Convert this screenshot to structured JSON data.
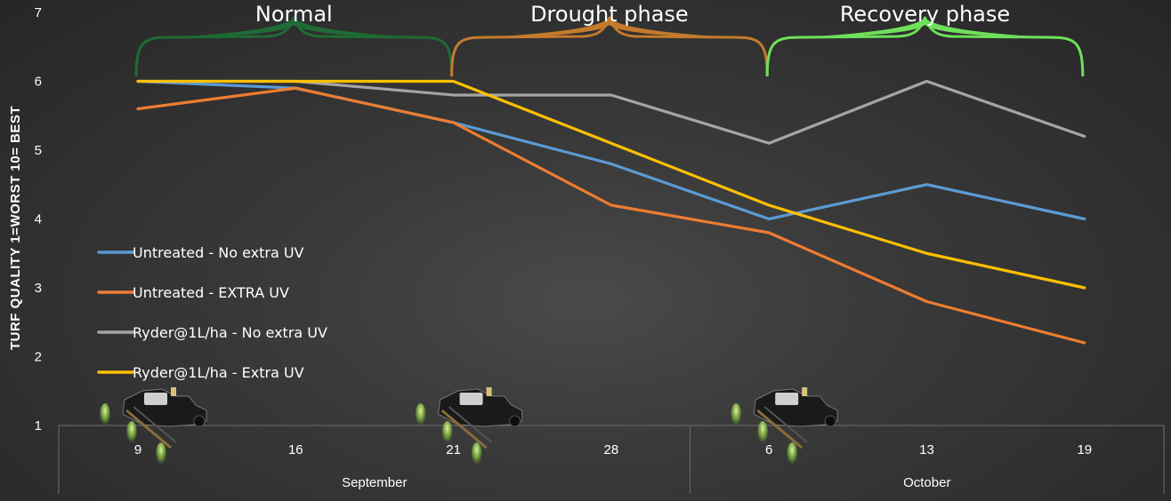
{
  "chart_data": {
    "type": "line",
    "ylabel": "TURF QUALITY 1=WORST 10= BEST",
    "ylim": [
      1,
      7
    ],
    "yticks": [
      1,
      2,
      3,
      4,
      5,
      6,
      7
    ],
    "categories": [
      "9",
      "16",
      "21",
      "28",
      "6",
      "13",
      "19"
    ],
    "months": [
      {
        "label": "September",
        "from": 0,
        "to": 3
      },
      {
        "label": "October",
        "from": 4,
        "to": 6
      }
    ],
    "series": [
      {
        "name": "Untreated - No extra UV",
        "color": "#5b9bd5",
        "values": [
          6.0,
          5.9,
          5.4,
          4.8,
          4.0,
          4.5,
          4.0
        ]
      },
      {
        "name": "Untreated - EXTRA UV",
        "color": "#ed7d31",
        "values": [
          5.6,
          5.9,
          5.4,
          4.2,
          3.8,
          2.8,
          2.2
        ]
      },
      {
        "name": "Ryder@1L/ha - No extra UV",
        "color": "#a5a5a5",
        "values": [
          6.0,
          6.0,
          5.8,
          5.8,
          5.1,
          6.0,
          5.2
        ]
      },
      {
        "name": "Ryder@1L/ha - Extra UV",
        "color": "#ffc000",
        "values": [
          6.0,
          6.0,
          6.0,
          5.1,
          4.2,
          3.5,
          3.0
        ]
      }
    ],
    "phases": [
      {
        "label": "Normal",
        "color": "#1f6b35",
        "from": 0,
        "to": 2
      },
      {
        "label": "Drought phase",
        "color": "#c47a2c",
        "from": 2,
        "to": 4
      },
      {
        "label": "Recovery phase",
        "color": "#6fe05a",
        "from": 4,
        "to": 6
      }
    ],
    "sprayer_icons_at": [
      0,
      2,
      4
    ],
    "grid": false,
    "legend_position": "left"
  }
}
